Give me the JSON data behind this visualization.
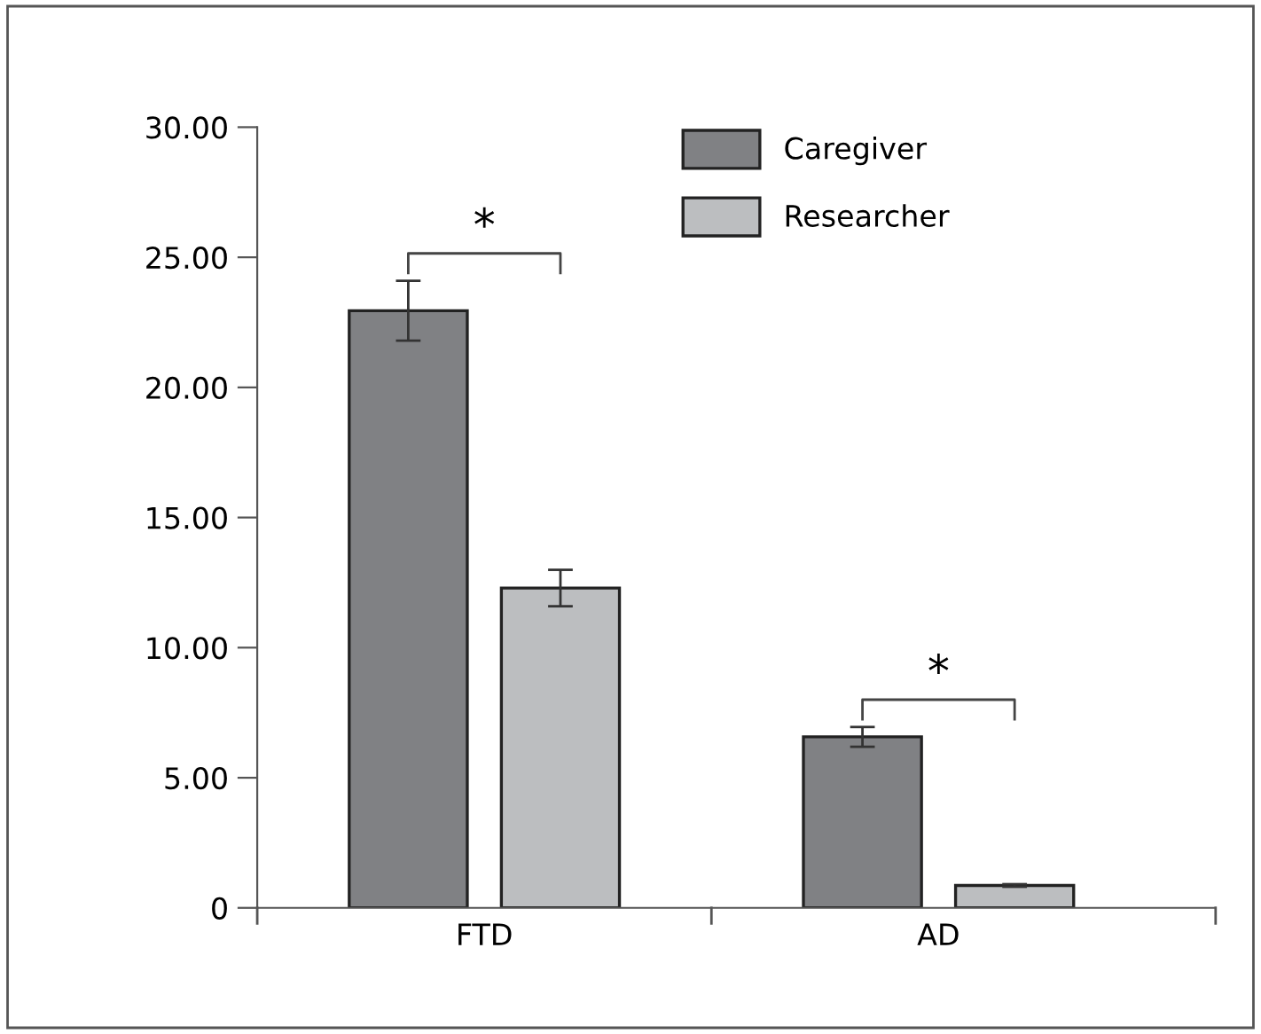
{
  "chart_data": {
    "type": "bar",
    "categories": [
      "FTD",
      "AD"
    ],
    "series": [
      {
        "name": "Caregiver",
        "color": "#808184",
        "values": [
          22.95,
          6.57
        ],
        "errors": [
          1.15,
          0.38
        ]
      },
      {
        "name": "Researcher",
        "color": "#bcbec0",
        "values": [
          12.29,
          0.86
        ],
        "errors": [
          0.7,
          0.05
        ]
      }
    ],
    "ylim": [
      0,
      30
    ],
    "yticks": [
      {
        "value": 0,
        "label": "0"
      },
      {
        "value": 5,
        "label": "5.00"
      },
      {
        "value": 10,
        "label": "10.00"
      },
      {
        "value": 15,
        "label": "15.00"
      },
      {
        "value": 20,
        "label": "20.00"
      },
      {
        "value": 25,
        "label": "25.00"
      },
      {
        "value": 30,
        "label": "30.00"
      }
    ],
    "annotations": [
      "*",
      "*"
    ],
    "legend": "top right",
    "grid": false
  }
}
